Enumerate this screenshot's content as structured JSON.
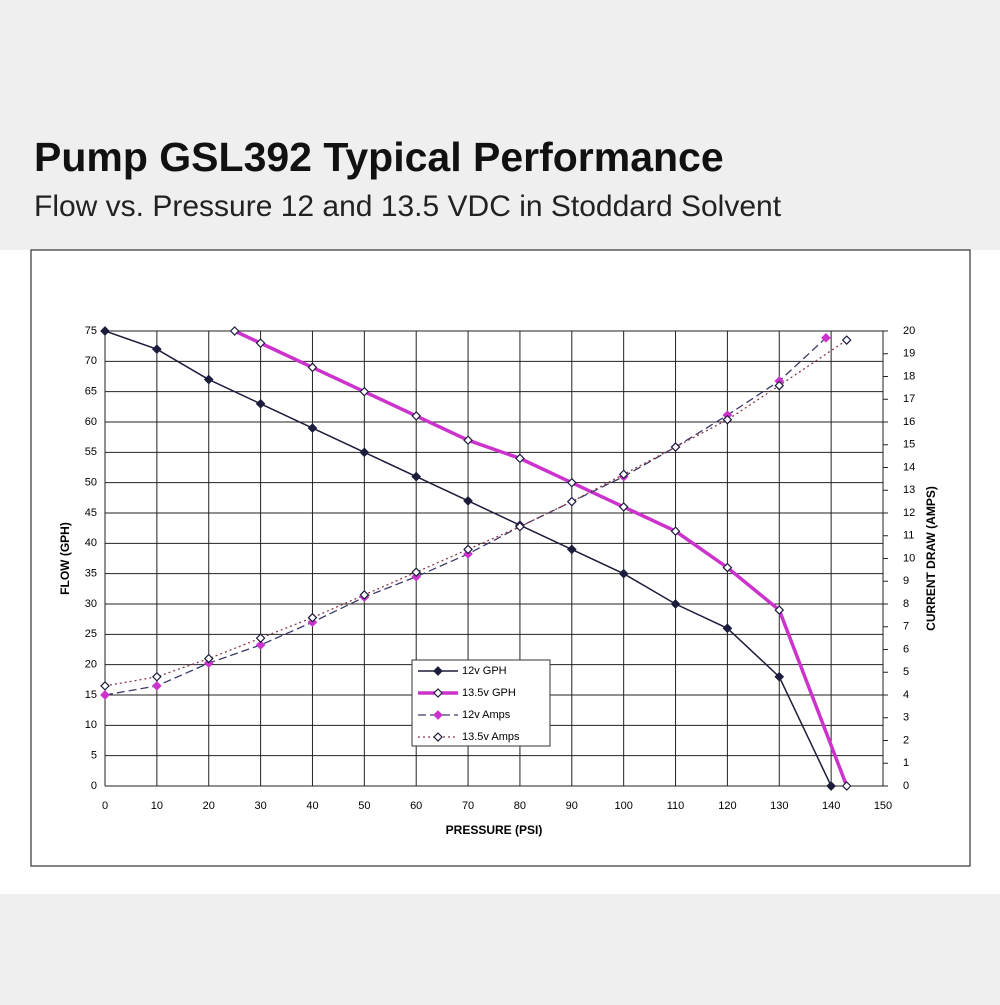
{
  "header": {
    "title": "Pump GSL392 Typical Performance",
    "subtitle": "Flow vs. Pressure 12 and 13.5 VDC in Stoddard Solvent"
  },
  "chart_data": {
    "type": "line",
    "x_label": "PRESSURE (PSI)",
    "y_label": "FLOW (GPH)",
    "y2_label": "CURRENT DRAW (AMPS)",
    "xlim": [
      0,
      150
    ],
    "xticks": [
      0,
      10,
      20,
      30,
      40,
      50,
      60,
      70,
      80,
      90,
      100,
      110,
      120,
      130,
      140,
      150
    ],
    "ylim": [
      0,
      75
    ],
    "yticks": [
      0,
      5,
      10,
      15,
      20,
      25,
      30,
      35,
      40,
      45,
      50,
      55,
      60,
      65,
      70,
      75
    ],
    "y2lim": [
      0,
      20
    ],
    "y2ticks": [
      0,
      1,
      2,
      3,
      4,
      5,
      6,
      7,
      8,
      9,
      10,
      11,
      12,
      13,
      14,
      15,
      16,
      17,
      18,
      19,
      20
    ],
    "grid": true,
    "series": [
      {
        "name": "12v GPH",
        "color": "#1c1c3c",
        "marker_color": "#1c1c3c",
        "style": "solid",
        "marker": "filled",
        "width": 1.5,
        "x": [
          0,
          10,
          20,
          30,
          40,
          50,
          60,
          70,
          80,
          90,
          100,
          110,
          120,
          130,
          140
        ],
        "values": [
          75,
          72,
          67,
          63,
          59,
          55,
          51,
          47,
          43,
          39,
          35,
          30,
          26,
          18,
          0
        ]
      },
      {
        "name": "13.5v GPH",
        "color": "#cc33cc",
        "marker_color": "#1c1c3c",
        "style": "solid",
        "marker": "open",
        "width": 3.5,
        "x": [
          25,
          30,
          40,
          50,
          60,
          70,
          80,
          90,
          100,
          110,
          120,
          130,
          143
        ],
        "values": [
          75,
          73,
          69,
          65,
          61,
          57,
          54,
          50,
          46,
          42,
          36,
          29,
          0
        ]
      },
      {
        "name": "12v Amps",
        "axis": "y2",
        "color": "#3a3a6a",
        "marker_color": "#cc33cc",
        "style": "dash",
        "marker": "filled",
        "width": 1.3,
        "x": [
          0,
          10,
          20,
          30,
          40,
          50,
          60,
          70,
          80,
          90,
          100,
          110,
          120,
          130,
          139
        ],
        "values": [
          4.0,
          4.4,
          5.4,
          6.2,
          7.2,
          8.3,
          9.2,
          10.2,
          11.4,
          12.5,
          13.6,
          14.9,
          16.3,
          17.8,
          19.7
        ]
      },
      {
        "name": "13.5v Amps",
        "axis": "y2",
        "color": "#8b3a4a",
        "marker_color": "#1c1c3c",
        "style": "dot",
        "marker": "open",
        "width": 1.3,
        "x": [
          0,
          10,
          20,
          30,
          40,
          50,
          60,
          70,
          80,
          90,
          100,
          110,
          120,
          130,
          143
        ],
        "values": [
          4.4,
          4.8,
          5.6,
          6.5,
          7.4,
          8.4,
          9.4,
          10.4,
          11.4,
          12.5,
          13.7,
          14.9,
          16.1,
          17.6,
          19.6
        ]
      }
    ]
  }
}
